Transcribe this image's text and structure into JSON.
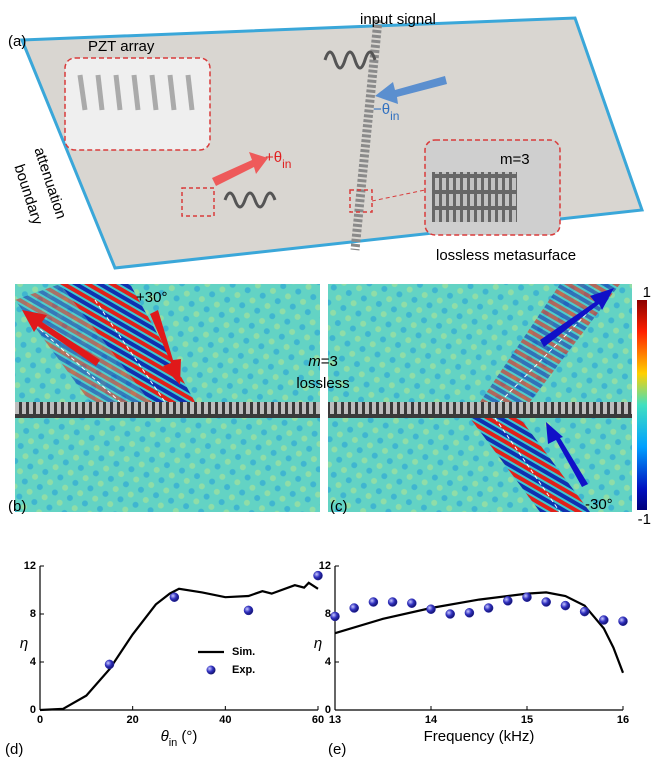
{
  "panel_a": {
    "label": "(a)",
    "pzt_array": "PZT array",
    "input_signal": "input signal",
    "plus_angle": {
      "symbol": "+θ",
      "subscript": "in"
    },
    "minus_angle": {
      "symbol": "−θ",
      "subscript": "in"
    },
    "inset_m": "m=3",
    "boundary_line1": "attenuation",
    "boundary_line2": "boundary",
    "metasurface": "lossless metasurface"
  },
  "panel_bc": {
    "label_b": "(b)",
    "label_c": "(c)",
    "angle_b": "+30°",
    "angle_c": "-30°",
    "m_symbol": "m",
    "m_value": "=3",
    "lossless": "lossless",
    "colorbar_max": "1",
    "colorbar_min": "-1"
  },
  "chart_data": [
    {
      "type": "line",
      "panel_label": "(d)",
      "ylabel": "η",
      "xlabel": {
        "symbol": "θ",
        "subscript": "in",
        "unit": " (°)"
      },
      "xlim": [
        0,
        60
      ],
      "xticks": [
        0,
        20,
        40,
        60
      ],
      "ylim": [
        0,
        12
      ],
      "yticks": [
        0,
        4,
        8,
        12
      ],
      "legend": "lower-right",
      "series": [
        {
          "name": "Sim.",
          "style": "line",
          "color": "#000000",
          "x": [
            0,
            5,
            10,
            15,
            20,
            25,
            28,
            30,
            35,
            40,
            45,
            48,
            50,
            55,
            57,
            58,
            60
          ],
          "values": [
            0,
            0.1,
            1.2,
            3.4,
            6.3,
            8.8,
            9.7,
            10.1,
            9.8,
            9.4,
            9.5,
            9.9,
            9.7,
            10.4,
            10.2,
            10.6,
            10.1
          ]
        },
        {
          "name": "Exp.",
          "style": "markers",
          "color": "#2a2ab0",
          "x": [
            15,
            29,
            45,
            60
          ],
          "values": [
            3.8,
            9.4,
            8.3,
            11.2
          ]
        }
      ]
    },
    {
      "type": "line",
      "panel_label": "(e)",
      "ylabel": "η",
      "xlabel": "Frequency (kHz)",
      "xlim": [
        13,
        16
      ],
      "xticks": [
        13,
        14,
        15,
        16
      ],
      "ylim": [
        0,
        12
      ],
      "yticks": [
        0,
        4,
        8,
        12
      ],
      "series": [
        {
          "style": "line",
          "color": "#000000",
          "x": [
            13,
            13.5,
            14,
            14.5,
            15,
            15.2,
            15.4,
            15.6,
            15.8,
            15.9,
            16
          ],
          "values": [
            6.4,
            7.6,
            8.5,
            9.2,
            9.7,
            9.8,
            9.5,
            8.7,
            6.8,
            5.2,
            3.1
          ]
        },
        {
          "style": "markers",
          "color": "#2a2ab0",
          "x": [
            13,
            13.2,
            13.4,
            13.6,
            13.8,
            14,
            14.2,
            14.4,
            14.6,
            14.8,
            15,
            15.2,
            15.4,
            15.6,
            15.8,
            16
          ],
          "values": [
            7.8,
            8.5,
            9.0,
            9.0,
            8.9,
            8.4,
            8.0,
            8.1,
            8.5,
            9.1,
            9.4,
            9.0,
            8.7,
            8.2,
            7.5,
            7.4
          ]
        }
      ]
    }
  ]
}
